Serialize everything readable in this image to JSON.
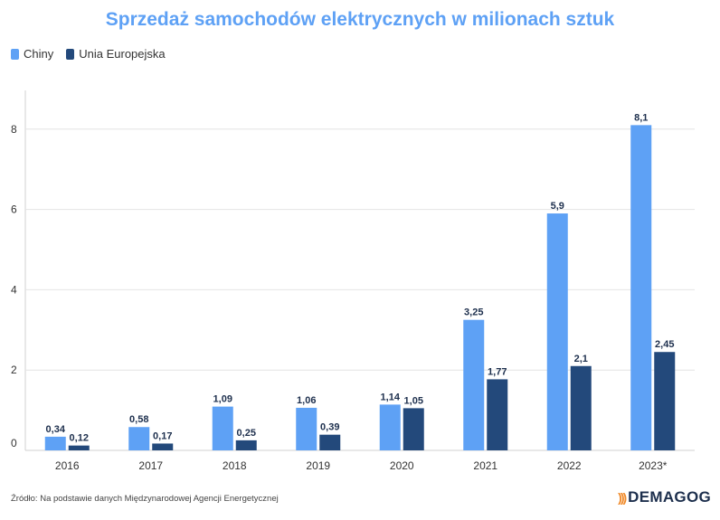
{
  "chart_data": {
    "type": "bar",
    "title": "Sprzedaż samochodów elektrycznych w milionach sztuk",
    "categories": [
      "2016",
      "2017",
      "2018",
      "2019",
      "2020",
      "2021",
      "2022",
      "2023*"
    ],
    "series": [
      {
        "name": "Chiny",
        "color": "#5ea1f5",
        "values": [
          0.34,
          0.58,
          1.09,
          1.06,
          1.14,
          3.25,
          5.9,
          8.1
        ],
        "labels": [
          "0,34",
          "0,58",
          "1,09",
          "1,06",
          "1,14",
          "3,25",
          "5,9",
          "8,1"
        ]
      },
      {
        "name": "Unia Europejska",
        "color": "#23497b",
        "values": [
          0.12,
          0.17,
          0.25,
          0.39,
          1.05,
          1.77,
          2.1,
          2.45
        ],
        "labels": [
          "0,12",
          "0,17",
          "0,25",
          "0,39",
          "1,05",
          "1,77",
          "2,1",
          "2,45"
        ]
      }
    ],
    "yticks": [
      0,
      2,
      4,
      6,
      8
    ],
    "ylim": [
      0,
      8
    ],
    "grid": true,
    "legend": "top-left",
    "xlabel": "",
    "ylabel": ""
  },
  "footer": {
    "source": "Źródło: Na podstawie danych Międzynarodowej Agencji Energetycznej",
    "brand": "DEMAGOG"
  }
}
